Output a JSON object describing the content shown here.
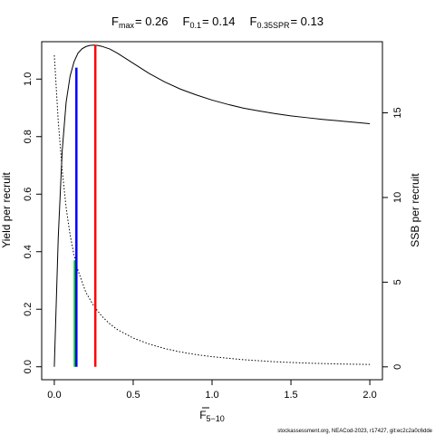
{
  "chart_data": {
    "type": "line",
    "title_parts": [
      {
        "base": "F",
        "sub": "max",
        "value": "= 0.26"
      },
      {
        "base": "F",
        "sub": "0.1",
        "value": "= 0.14"
      },
      {
        "base": "F",
        "sub": "0.35SPR",
        "value": "= 0.13"
      }
    ],
    "xlabel": {
      "base": "F",
      "sub": "5−10",
      "overbar": true
    },
    "ylabel_left": "Yield per recruit",
    "ylabel_right": "SSB per recruit",
    "xlim": [
      -0.08,
      2.08
    ],
    "ylim_left": [
      -0.045,
      1.13
    ],
    "ylim_right": [
      -0.76,
      19.2
    ],
    "x_ticks": [
      "0.0",
      "0.5",
      "1.0",
      "1.5",
      "2.0"
    ],
    "x_tick_values": [
      0.0,
      0.5,
      1.0,
      1.5,
      2.0
    ],
    "y_left_ticks": [
      "0.0",
      "0.2",
      "0.4",
      "0.6",
      "0.8",
      "1.0"
    ],
    "y_left_tick_values": [
      0.0,
      0.2,
      0.4,
      0.6,
      0.8,
      1.0
    ],
    "y_right_ticks": [
      "0",
      "5",
      "10",
      "15"
    ],
    "y_right_tick_values": [
      0,
      5,
      10,
      15
    ],
    "series": [
      {
        "axis": "left",
        "style": "solid",
        "color": "#000000",
        "x": [
          0.0,
          0.025,
          0.05,
          0.075,
          0.1,
          0.125,
          0.15,
          0.175,
          0.2,
          0.225,
          0.25,
          0.275,
          0.3,
          0.35,
          0.4,
          0.5,
          0.6,
          0.7,
          0.8,
          0.9,
          1.0,
          1.1,
          1.2,
          1.3,
          1.4,
          1.5,
          1.6,
          1.7,
          1.8,
          1.9,
          2.0
        ],
        "y": [
          0.0,
          0.45,
          0.75,
          0.92,
          1.01,
          1.06,
          1.09,
          1.105,
          1.113,
          1.117,
          1.118,
          1.117,
          1.114,
          1.105,
          1.09,
          1.055,
          1.02,
          0.99,
          0.965,
          0.945,
          0.927,
          0.912,
          0.899,
          0.889,
          0.88,
          0.872,
          0.866,
          0.86,
          0.855,
          0.85,
          0.845
        ]
      },
      {
        "axis": "right",
        "style": "dotted",
        "color": "#000000",
        "x": [
          0.0,
          0.025,
          0.05,
          0.075,
          0.1,
          0.125,
          0.15,
          0.2,
          0.25,
          0.3,
          0.35,
          0.4,
          0.5,
          0.6,
          0.7,
          0.8,
          0.9,
          1.0,
          1.2,
          1.4,
          1.6,
          1.8,
          2.0
        ],
        "y": [
          18.4,
          14.5,
          11.6,
          9.4,
          7.8,
          6.6,
          5.7,
          4.4,
          3.6,
          3.0,
          2.55,
          2.2,
          1.7,
          1.35,
          1.08,
          0.88,
          0.72,
          0.6,
          0.42,
          0.3,
          0.22,
          0.17,
          0.14
        ]
      }
    ],
    "reference_lines": [
      {
        "name": "F0.35SPR",
        "x": 0.13,
        "y_from": 0,
        "y_to": 0.37,
        "color": "#00cc00"
      },
      {
        "name": "F0.1",
        "x": 0.14,
        "y_from": 0,
        "y_to": 1.04,
        "color": "#0000ff"
      },
      {
        "name": "Fmax",
        "x": 0.26,
        "y_from": 0,
        "y_to": 1.118,
        "color": "#ff0000"
      }
    ]
  },
  "footer": "stockassessment.org, NEACod-2023, r17427, git:ec2c2a0c6dde"
}
